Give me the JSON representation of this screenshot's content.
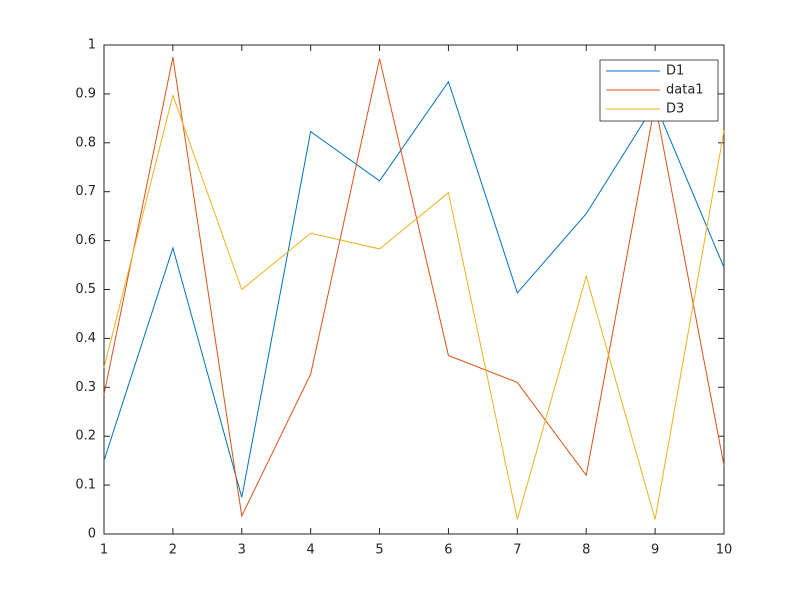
{
  "chart_data": {
    "type": "line",
    "x": [
      1,
      2,
      3,
      4,
      5,
      6,
      7,
      8,
      9,
      10
    ],
    "series": [
      {
        "name": "D1",
        "color": "#0072bd",
        "values": [
          0.15,
          0.585,
          0.075,
          0.823,
          0.722,
          0.925,
          0.493,
          0.655,
          0.88,
          0.545
        ]
      },
      {
        "name": "data1",
        "color": "#d95319",
        "values": [
          0.285,
          0.975,
          0.037,
          0.327,
          0.972,
          0.365,
          0.31,
          0.12,
          0.88,
          0.14
        ]
      },
      {
        "name": "D3",
        "color": "#edb120",
        "values": [
          0.34,
          0.897,
          0.5,
          0.615,
          0.583,
          0.698,
          0.03,
          0.527,
          0.03,
          0.825
        ]
      }
    ],
    "xlim": [
      1,
      10
    ],
    "xticks": [
      1,
      2,
      3,
      4,
      5,
      6,
      7,
      8,
      9,
      10
    ],
    "ylim": [
      0,
      1
    ],
    "yticks": [
      0,
      0.1,
      0.2,
      0.3,
      0.4,
      0.5,
      0.6,
      0.7,
      0.8,
      0.9,
      1
    ],
    "grid": false,
    "legend": "top-right"
  }
}
